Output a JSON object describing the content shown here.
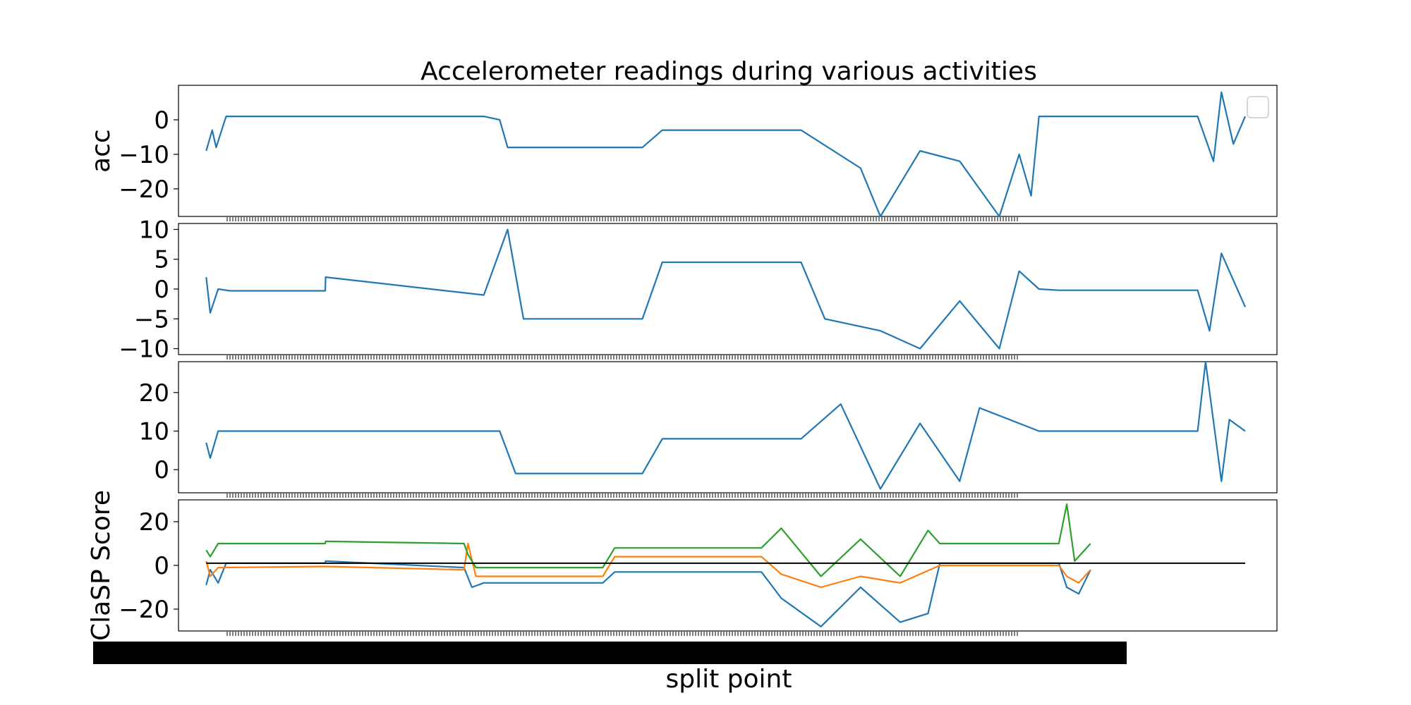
{
  "colors": {
    "blue": "#1f77b4",
    "orange": "#ff7f0e",
    "green": "#2ca02c",
    "black": "#000000"
  },
  "chart_data": [
    {
      "type": "line",
      "title": "Accelerometer readings during various activities",
      "ylabel": "acc",
      "ylim": [
        -28,
        10
      ],
      "yticks": [
        0,
        -10,
        -20
      ],
      "ytick_labels": [
        "0",
        "−10",
        "−20"
      ],
      "legend": "top-right",
      "series": [
        {
          "color": "#1f77b4",
          "x": [
            0,
            15,
            25,
            50,
            700,
            740,
            760,
            800,
            1100,
            1150,
            1190,
            1500,
            1650,
            1700,
            1800,
            1900,
            2000,
            2050,
            2080,
            2100,
            2150,
            2200,
            2500,
            2540,
            2560,
            2590,
            2620
          ],
          "y": [
            -9,
            -3,
            -8,
            1,
            1,
            0,
            -8,
            -8,
            -8,
            -3,
            -3,
            -3,
            -14,
            -28,
            -9,
            -12,
            -28,
            -10,
            -22,
            1,
            1,
            1,
            1,
            -12,
            8,
            -7,
            1
          ]
        }
      ]
    },
    {
      "type": "line",
      "ylim": [
        -11,
        11
      ],
      "yticks": [
        10,
        5,
        0,
        -5,
        -10
      ],
      "ytick_labels": [
        "10",
        "5",
        "0",
        "−5",
        "−10"
      ],
      "series": [
        {
          "color": "#1f77b4",
          "x": [
            0,
            10,
            30,
            60,
            300,
            301,
            700,
            760,
            800,
            1100,
            1150,
            1500,
            1560,
            1700,
            1800,
            1900,
            2000,
            2050,
            2100,
            2150,
            2500,
            2530,
            2560,
            2620
          ],
          "y": [
            2,
            -4,
            0,
            -0.3,
            -0.3,
            2,
            -1,
            10,
            -5,
            -5,
            4.5,
            4.5,
            -5,
            -7,
            -10,
            -2,
            -10,
            3,
            0,
            -0.2,
            -0.2,
            -7,
            6,
            -3
          ]
        }
      ]
    },
    {
      "type": "line",
      "ylim": [
        -6,
        28
      ],
      "yticks": [
        20,
        10,
        0
      ],
      "ytick_labels": [
        "20",
        "10",
        "0"
      ],
      "series": [
        {
          "color": "#1f77b4",
          "x": [
            0,
            10,
            30,
            50,
            700,
            740,
            780,
            1100,
            1150,
            1500,
            1600,
            1700,
            1800,
            1900,
            1950,
            2100,
            2150,
            2500,
            2520,
            2560,
            2580,
            2620
          ],
          "y": [
            7,
            3,
            10,
            10,
            10,
            10,
            -1,
            -1,
            8,
            8,
            17,
            -5,
            12,
            -3,
            16,
            10,
            10,
            10,
            28,
            -3,
            13,
            10
          ]
        }
      ]
    },
    {
      "type": "line",
      "xlabel": "split point",
      "ylabel": "ClaSP Score",
      "ylim": [
        -30,
        30
      ],
      "yticks": [
        20,
        0,
        -20
      ],
      "ytick_labels": [
        "20",
        "0",
        "−20"
      ],
      "series": [
        {
          "color": "#1f77b4",
          "x": [
            0,
            10,
            30,
            50,
            300,
            301,
            650,
            670,
            700,
            1000,
            1030,
            1400,
            1450,
            1550,
            1650,
            1750,
            1820,
            1850,
            2150,
            2170,
            2200,
            2230
          ],
          "y": [
            -9,
            -2,
            -8,
            1,
            1,
            2,
            -1,
            -10,
            -8,
            -8,
            -3,
            -3,
            -15,
            -28,
            -10,
            -26,
            -22,
            1,
            1,
            -10,
            -13,
            -2
          ]
        },
        {
          "color": "#ff7f0e",
          "x": [
            0,
            10,
            30,
            300,
            650,
            660,
            680,
            1000,
            1030,
            1400,
            1450,
            1550,
            1650,
            1750,
            1850,
            2150,
            2170,
            2200,
            2230
          ],
          "y": [
            2,
            -5,
            -1,
            -0.5,
            -2,
            10,
            -5,
            -5,
            4,
            4,
            -4,
            -10,
            -5,
            -8,
            0,
            0,
            -5,
            -8,
            -2
          ]
        },
        {
          "color": "#2ca02c",
          "x": [
            0,
            10,
            30,
            300,
            301,
            650,
            660,
            680,
            1000,
            1030,
            1400,
            1450,
            1550,
            1650,
            1750,
            1820,
            1850,
            2150,
            2170,
            2190,
            2230
          ],
          "y": [
            7,
            4,
            10,
            10,
            11,
            10,
            5,
            -1,
            -1,
            8,
            8,
            17,
            -5,
            12,
            -5,
            16,
            10,
            10,
            28,
            2,
            10
          ]
        },
        {
          "color": "#000000",
          "x": [
            0,
            2620
          ],
          "y": [
            1,
            1
          ]
        }
      ]
    }
  ]
}
